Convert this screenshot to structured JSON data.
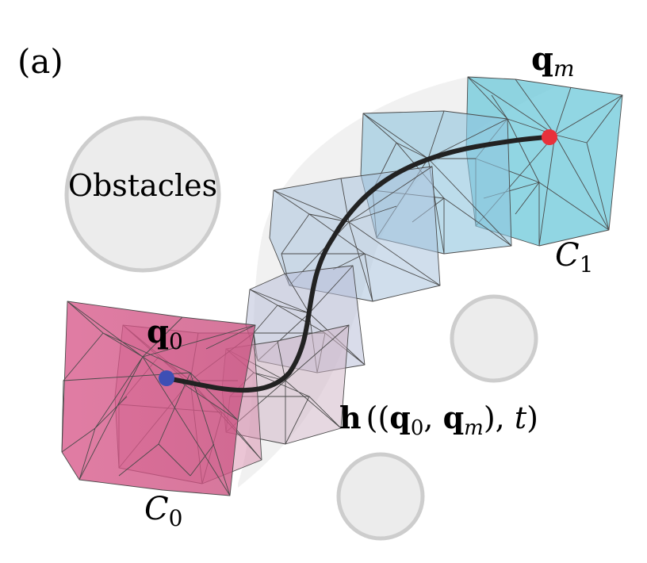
{
  "panel_label": "(a)",
  "obstacles_label": "Obstacles",
  "start": {
    "symbol": "q",
    "subscript": "0",
    "color": "#3e4fb4"
  },
  "end": {
    "symbol": "q",
    "subscript": "m",
    "color": "#e8313b"
  },
  "set_start": {
    "symbol": "C",
    "subscript": "0",
    "color": "#d35b8a"
  },
  "set_end": {
    "symbol": "C",
    "subscript": "1",
    "color": "#5cc4d9"
  },
  "homotopy": {
    "func": "h",
    "open_outer": "(",
    "open_inner": "(",
    "q": "q",
    "sub0": "0",
    "comma1": ", ",
    "subm": "m",
    "close_inner": ")",
    "comma2": ", ",
    "t": "t",
    "close_outer": ")"
  },
  "colors": {
    "obstacle_fill": "#ececec",
    "obstacle_stroke": "#cdcdcd",
    "path": "#222222",
    "mesh": "#4a4a4a"
  }
}
